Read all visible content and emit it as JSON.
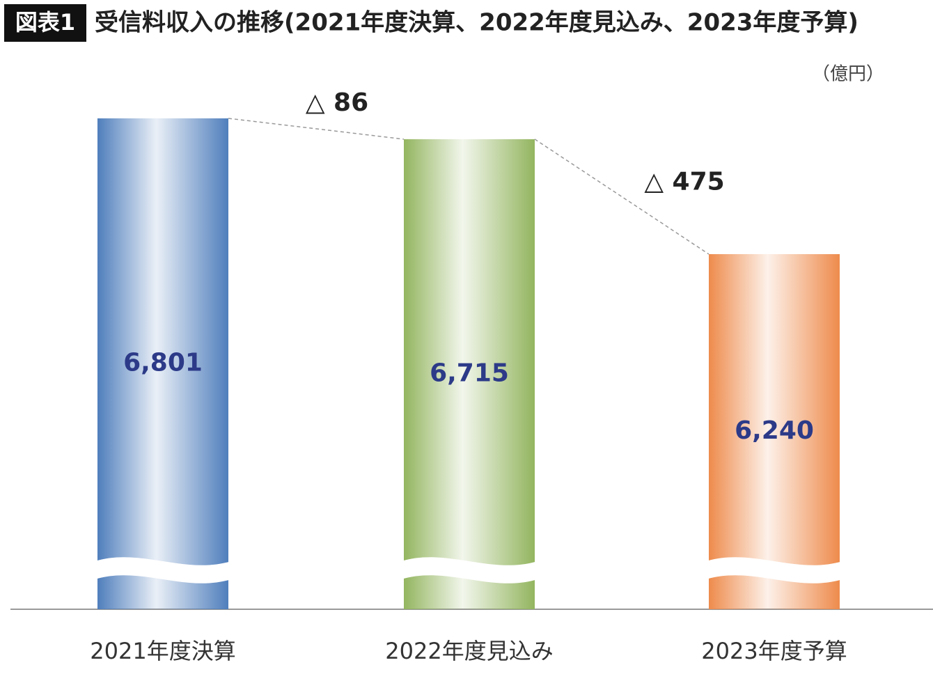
{
  "chart_data": {
    "type": "bar",
    "figure_label": "図表1",
    "title": "受信料収入の推移(2021年度決算、2022年度見込み、2023年度予算)",
    "unit": "（億円）",
    "categories": [
      "2021年度決算",
      "2022年度見込み",
      "2023年度予算"
    ],
    "values": [
      6801,
      6715,
      6240
    ],
    "value_labels": [
      "6,801",
      "6,715",
      "6,240"
    ],
    "colors": [
      "#4f7ebc",
      "#93b55f",
      "#ee8b4c"
    ],
    "annotations": [
      "△ 86",
      "△ 475"
    ]
  }
}
